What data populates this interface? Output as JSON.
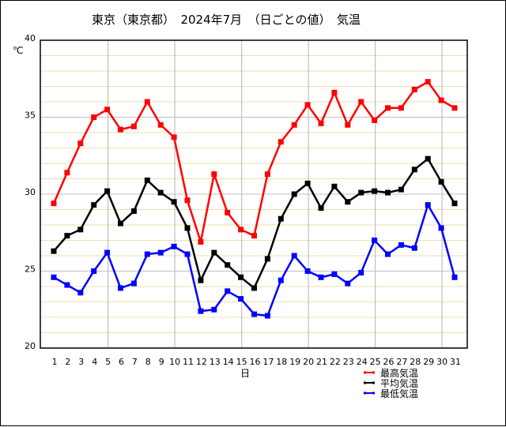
{
  "chart_data": {
    "type": "line",
    "title": "東京（東京都）　2024年7月　（日ごとの値）　気温",
    "xlabel": "日",
    "ylabel": "℃",
    "ylim": [
      20,
      40
    ],
    "yticks": [
      20,
      25,
      30,
      35,
      40
    ],
    "grid": true,
    "legend_position": "bottom-right",
    "x": [
      1,
      2,
      3,
      4,
      5,
      6,
      7,
      8,
      9,
      10,
      11,
      12,
      13,
      14,
      15,
      16,
      17,
      18,
      19,
      20,
      21,
      22,
      23,
      24,
      25,
      26,
      27,
      28,
      29,
      30,
      31
    ],
    "series": [
      {
        "name": "最高気温",
        "color": "#ff0000",
        "values": [
          29.4,
          31.4,
          33.3,
          35.0,
          35.5,
          34.2,
          34.4,
          36.0,
          34.5,
          33.7,
          29.6,
          26.9,
          31.3,
          28.8,
          27.7,
          27.3,
          31.3,
          33.4,
          34.5,
          35.8,
          34.6,
          36.6,
          34.5,
          36.0,
          34.8,
          35.6,
          35.6,
          36.8,
          37.3,
          36.1,
          35.6
        ]
      },
      {
        "name": "平均気温",
        "color": "#000000",
        "values": [
          26.3,
          27.3,
          27.7,
          29.3,
          30.2,
          28.1,
          28.9,
          30.9,
          30.1,
          29.5,
          27.8,
          24.4,
          26.2,
          25.4,
          24.6,
          23.9,
          25.8,
          28.4,
          30.0,
          30.7,
          29.1,
          30.5,
          29.5,
          30.1,
          30.2,
          30.1,
          30.3,
          31.6,
          32.3,
          30.8,
          29.4
        ]
      },
      {
        "name": "最低気温",
        "color": "#0000ff",
        "values": [
          24.6,
          24.1,
          23.6,
          25.0,
          26.2,
          23.9,
          24.2,
          26.1,
          26.2,
          26.6,
          26.1,
          22.4,
          22.5,
          23.7,
          23.2,
          22.2,
          22.1,
          24.4,
          26.0,
          25.0,
          24.6,
          24.8,
          24.2,
          24.9,
          27.0,
          26.1,
          26.7,
          26.5,
          29.3,
          27.8,
          24.6
        ]
      }
    ]
  }
}
